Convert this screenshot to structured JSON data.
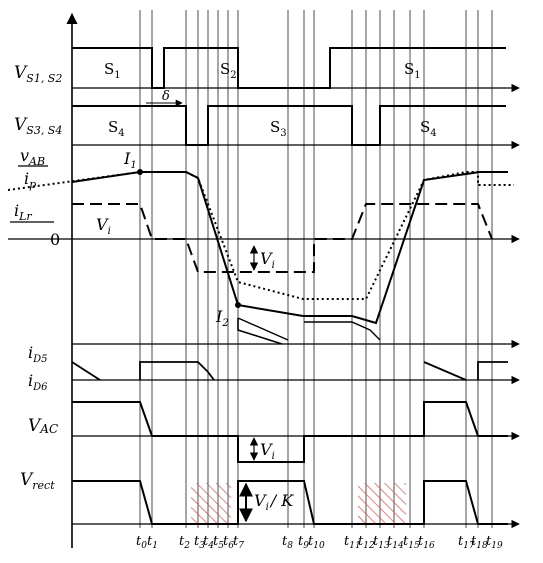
{
  "signal_labels": {
    "vs12": "V",
    "vs12_sub": "S1, S2",
    "vs34": "V",
    "vs34_sub": "S3, S4",
    "vab": "v",
    "vab_sub": "AB",
    "ip": "i",
    "ip_sub": "p",
    "ilr": "i",
    "ilr_sub": "Lr",
    "zero": "0",
    "id5": "i",
    "id5_sub": "D5",
    "id6": "i",
    "id6_sub": "D6",
    "vac": "V",
    "vac_sub": "AC",
    "vrect": "V",
    "vrect_sub": "rect"
  },
  "switch_labels": {
    "s1": "S",
    "s1_sub": "1",
    "s2": "S",
    "s2_sub": "2",
    "s1b": "S",
    "s1b_sub": "1",
    "s4": "S",
    "s4_sub": "4",
    "s3": "S",
    "s3_sub": "3",
    "s4b": "S",
    "s4b_sub": "4"
  },
  "annotations": {
    "delta": "δ",
    "i1": "I",
    "i1_sub": "1",
    "i2": "I",
    "i2_sub": "2",
    "vi_left": "V",
    "vi_left_sub": "i",
    "vi_gap": "V",
    "vi_gap_sub": "i",
    "vi_vac": "V",
    "vi_vac_sub": "i",
    "vi_k": "V",
    "vi_k_sub": "i",
    "vi_k_tail": "/ K"
  },
  "time_labels": [
    {
      "t": "t",
      "sub": "0"
    },
    {
      "t": "t",
      "sub": "1"
    },
    {
      "t": "t",
      "sub": "2"
    },
    {
      "t": "t",
      "sub": "3"
    },
    {
      "t": "t",
      "sub": "4"
    },
    {
      "t": "t",
      "sub": "5"
    },
    {
      "t": "t",
      "sub": "6"
    },
    {
      "t": "t",
      "sub": "7"
    },
    {
      "t": "t",
      "sub": "8"
    },
    {
      "t": "t",
      "sub": "9"
    },
    {
      "t": "t",
      "sub": "10"
    },
    {
      "t": "t",
      "sub": "11"
    },
    {
      "t": "t",
      "sub": "12"
    },
    {
      "t": "t",
      "sub": "13"
    },
    {
      "t": "t",
      "sub": "14"
    },
    {
      "t": "t",
      "sub": "15"
    },
    {
      "t": "t",
      "sub": "16"
    },
    {
      "t": "t",
      "sub": "17"
    },
    {
      "t": "t",
      "sub": "18"
    },
    {
      "t": "t",
      "sub": "19"
    }
  ],
  "colors": {
    "ink": "#000000",
    "hatch": "#d9534f"
  }
}
